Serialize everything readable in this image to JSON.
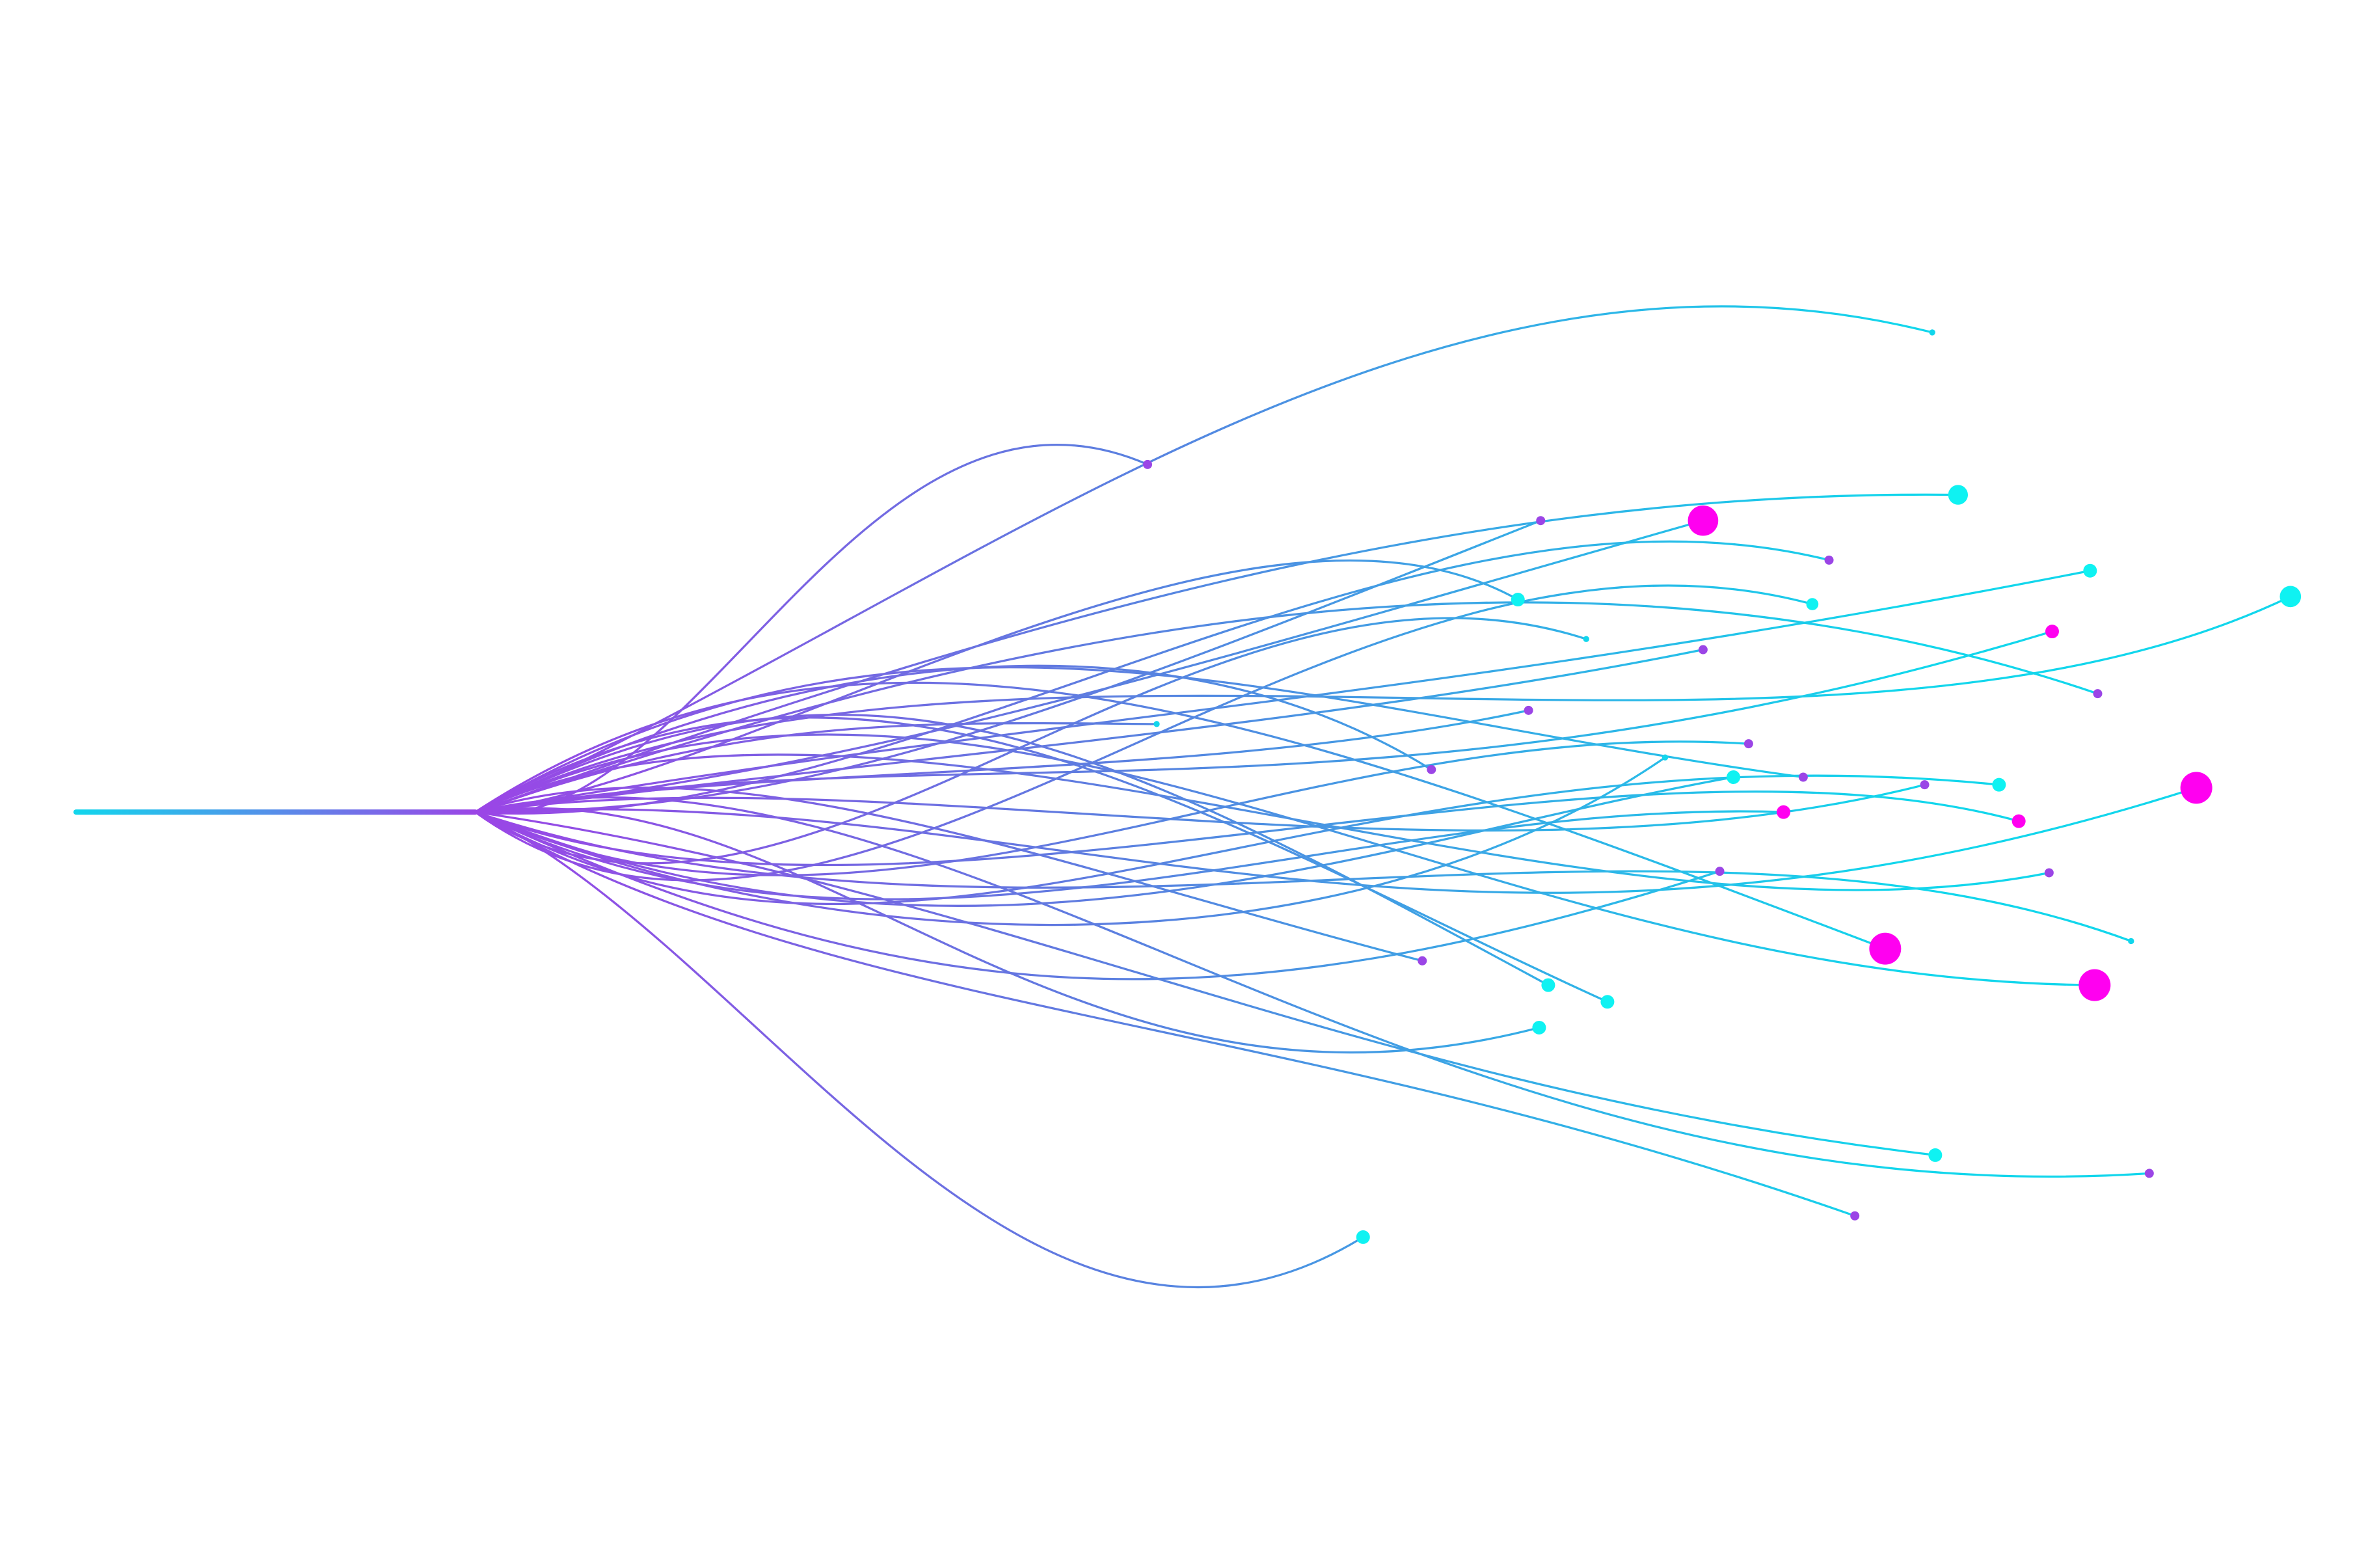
{
  "illustration": {
    "background": "#ffffff",
    "colors": {
      "purple": "#9b45e6",
      "blue": "#5b7fe0",
      "cyan": "#12d6ec",
      "bright_cyan": "#0ff2f2",
      "magenta": "#ff00f0"
    }
  }
}
